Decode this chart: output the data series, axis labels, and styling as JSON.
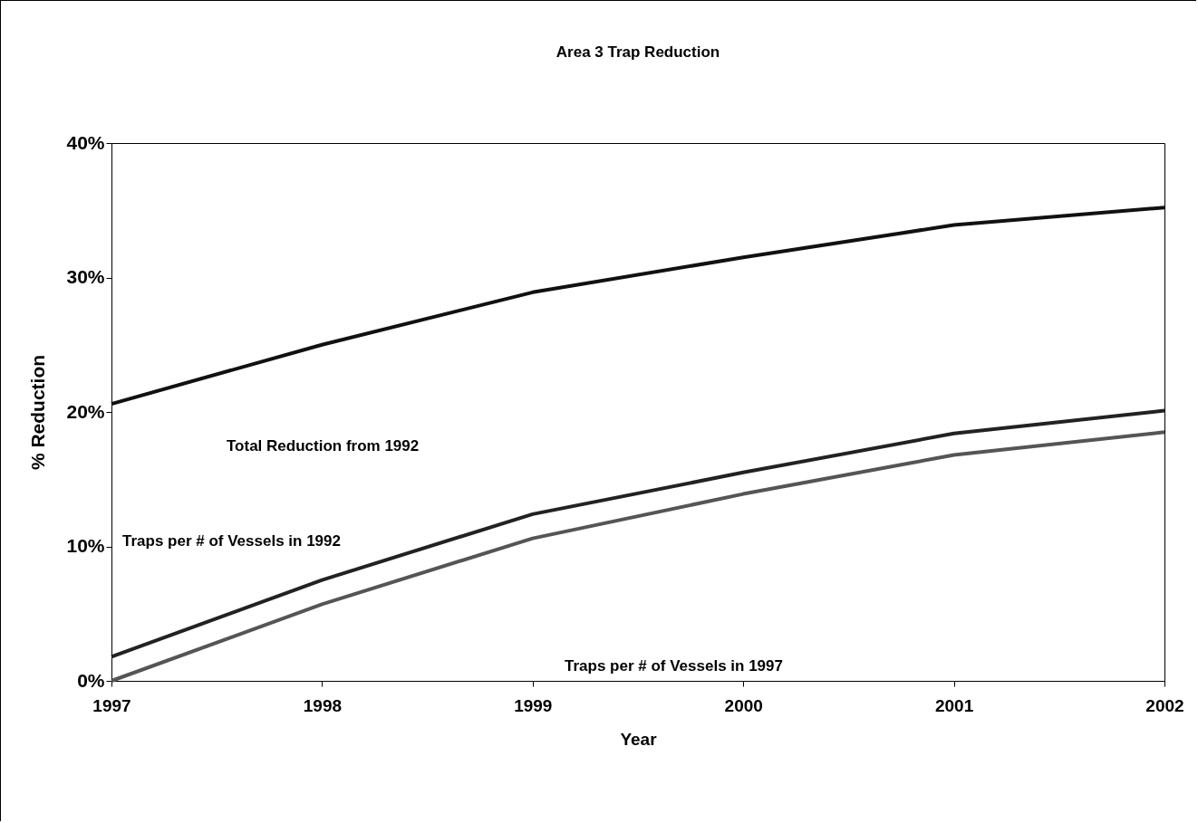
{
  "chart_data": {
    "type": "line",
    "title": "Area 3 Trap Reduction",
    "xlabel": "Year",
    "ylabel": "% Reduction",
    "x": [
      1997,
      1998,
      1999,
      2000,
      2001,
      2002
    ],
    "series": [
      {
        "color": "#111111",
        "values": [
          20.6,
          25.0,
          28.9,
          31.5,
          33.9,
          35.2
        ]
      },
      {
        "color": "#222222",
        "values": [
          1.8,
          7.5,
          12.4,
          15.5,
          18.4,
          20.1
        ]
      },
      {
        "color": "#555555",
        "values": [
          0,
          5.7,
          10.6,
          13.9,
          16.8,
          18.5
        ]
      }
    ],
    "xlim": [
      1997,
      2002
    ],
    "xticks": [
      1997,
      1998,
      1999,
      2000,
      2001,
      2002
    ],
    "ylim": [
      0,
      40
    ],
    "yticks": [
      {
        "value": 0,
        "label": "0%"
      },
      {
        "value": 10,
        "label": "10%"
      },
      {
        "value": 20,
        "label": "20%"
      },
      {
        "value": 30,
        "label": "30%"
      },
      {
        "value": 40,
        "label": "40%"
      }
    ],
    "annotations": [
      "Total Reduction from 1992",
      "Traps per # of Vessels in 1992",
      "Traps per # of Vessels in 1997"
    ],
    "grid": false,
    "legend": false,
    "marker": "none",
    "line_style": "solid"
  }
}
